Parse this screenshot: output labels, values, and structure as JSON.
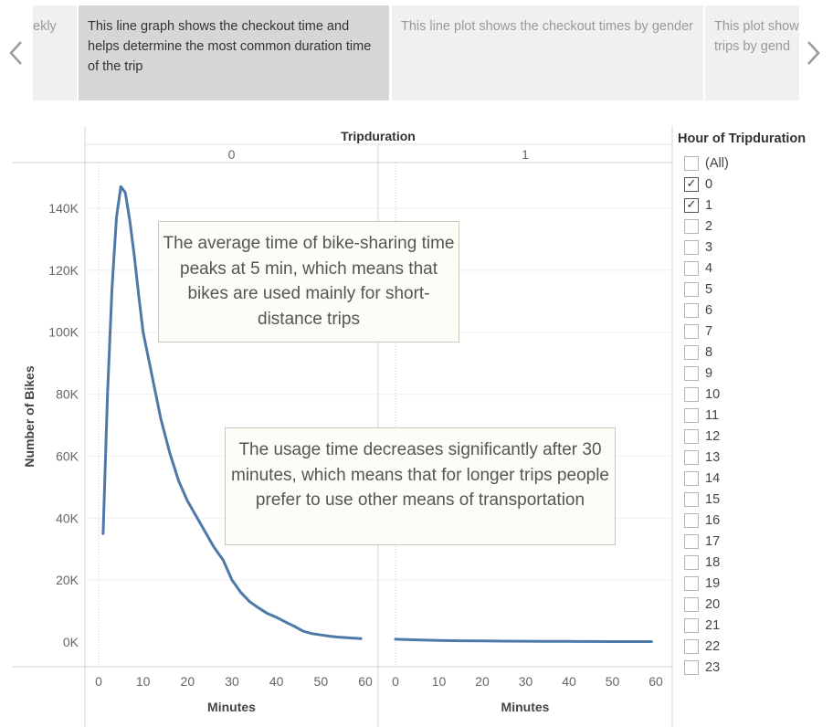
{
  "story": {
    "points": [
      {
        "text": "ekly",
        "active": false
      },
      {
        "text": "This line graph shows the checkout time and helps determine the most common duration time of the trip",
        "active": true
      },
      {
        "text": "This line plot shows the checkout times by gender",
        "active": false
      },
      {
        "text": "This plot show\ntrips by gend",
        "active": false
      }
    ]
  },
  "colors": {
    "line": "#4e79a7",
    "active_tab": "#d6d6d6",
    "inactive_tab": "#f0f0f0"
  },
  "icons": {
    "prev": "chevron-left-icon",
    "next": "chevron-right-icon"
  },
  "chart_data": {
    "type": "line",
    "column_header": "Tripduration",
    "panels": [
      {
        "label": "0",
        "x": [
          1,
          2,
          3,
          4,
          5,
          6,
          7,
          8,
          9,
          10,
          12,
          14,
          16,
          18,
          20,
          22,
          24,
          26,
          28,
          30,
          32,
          34,
          36,
          38,
          40,
          42,
          44,
          46,
          48,
          50,
          52,
          54,
          56,
          58,
          59
        ],
        "y": [
          35000,
          80000,
          114000,
          137000,
          147000,
          145000,
          136000,
          125000,
          112000,
          100000,
          86000,
          72000,
          61000,
          52000,
          45500,
          40500,
          35500,
          30500,
          26500,
          20000,
          16000,
          13000,
          11000,
          9200,
          8000,
          6500,
          5100,
          3500,
          2700,
          2300,
          1900,
          1600,
          1400,
          1200,
          1100
        ]
      },
      {
        "label": "1",
        "x": [
          0,
          5,
          10,
          15,
          20,
          25,
          30,
          35,
          40,
          45,
          50,
          55,
          59
        ],
        "y": [
          900,
          700,
          500,
          420,
          350,
          300,
          260,
          230,
          200,
          180,
          160,
          150,
          140
        ]
      }
    ],
    "xlabel": "Minutes",
    "ylabel": "Number of Bikes",
    "xticks": [
      "0",
      "10",
      "20",
      "30",
      "40",
      "50",
      "60"
    ],
    "yticks": [
      "0K",
      "20K",
      "40K",
      "60K",
      "80K",
      "100K",
      "120K",
      "140K"
    ],
    "xlim": [
      0,
      60
    ],
    "ylim": [
      0,
      150000
    ],
    "grid": true
  },
  "annotations": [
    "The average time of bike-sharing time peaks at 5 min, which means that bikes are used mainly for short-distance trips",
    "The usage time decreases significantly after 30 minutes, which means that for longer trips people prefer to use other means of transportation"
  ],
  "filter": {
    "title": "Hour of Tripduration",
    "options": [
      {
        "label": "(All)",
        "checked": false
      },
      {
        "label": "0",
        "checked": true
      },
      {
        "label": "1",
        "checked": true
      },
      {
        "label": "2",
        "checked": false
      },
      {
        "label": "3",
        "checked": false
      },
      {
        "label": "4",
        "checked": false
      },
      {
        "label": "5",
        "checked": false
      },
      {
        "label": "6",
        "checked": false
      },
      {
        "label": "7",
        "checked": false
      },
      {
        "label": "8",
        "checked": false
      },
      {
        "label": "9",
        "checked": false
      },
      {
        "label": "10",
        "checked": false
      },
      {
        "label": "11",
        "checked": false
      },
      {
        "label": "12",
        "checked": false
      },
      {
        "label": "13",
        "checked": false
      },
      {
        "label": "14",
        "checked": false
      },
      {
        "label": "15",
        "checked": false
      },
      {
        "label": "16",
        "checked": false
      },
      {
        "label": "17",
        "checked": false
      },
      {
        "label": "18",
        "checked": false
      },
      {
        "label": "19",
        "checked": false
      },
      {
        "label": "20",
        "checked": false
      },
      {
        "label": "21",
        "checked": false
      },
      {
        "label": "22",
        "checked": false
      },
      {
        "label": "23",
        "checked": false
      }
    ],
    "check_glyph": "✓"
  }
}
